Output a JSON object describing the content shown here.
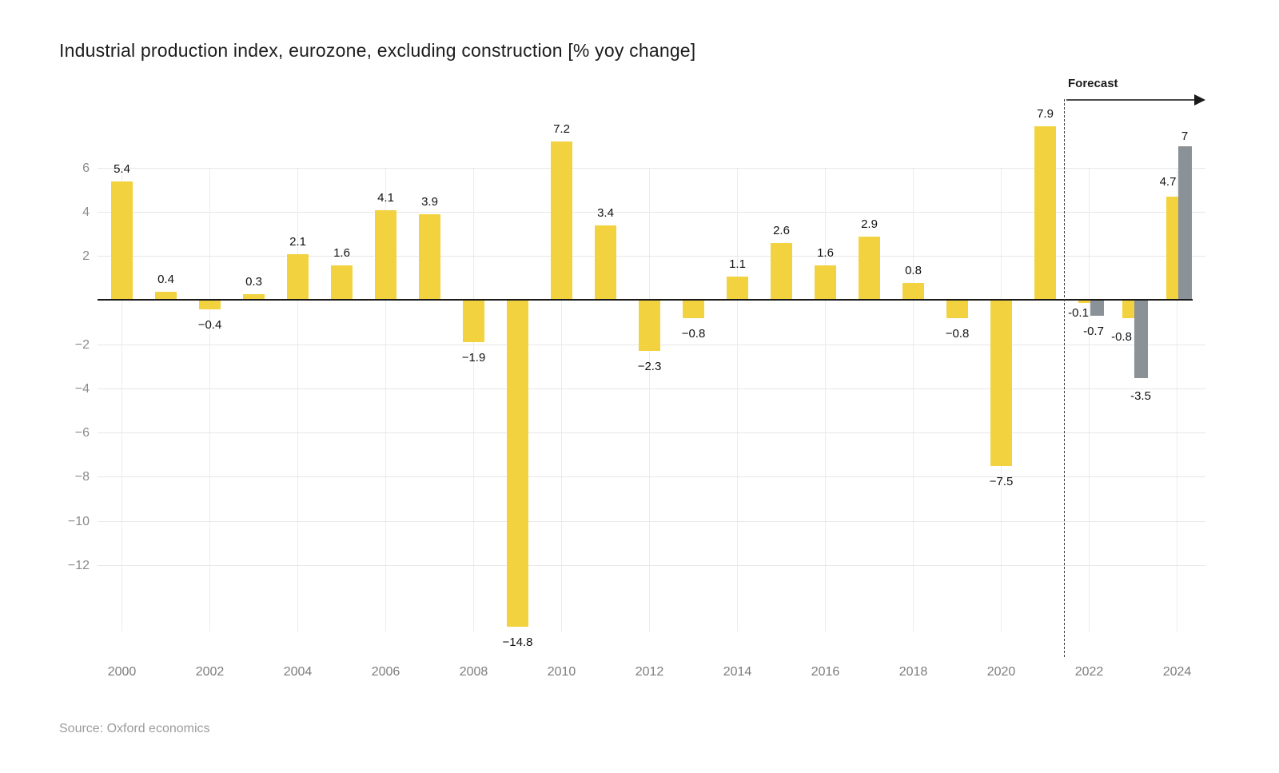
{
  "chart_data": {
    "type": "bar",
    "title": "Industrial production index, eurozone, excluding construction [% yoy change]",
    "source": "Source: Oxford economics",
    "forecast_label": "Forecast",
    "xlabel": "",
    "ylabel": "",
    "ylim": [
      -16,
      8
    ],
    "grid": true,
    "legend_position": "none",
    "colors": {
      "historical_bar": "#F3D240",
      "forecast_bar": "#8A9197",
      "axis_line": "#1a1a1a",
      "gridline": "#e7e7e7"
    },
    "y_ticks": [
      {
        "value": 6,
        "label": "6"
      },
      {
        "value": 4,
        "label": "4"
      },
      {
        "value": 2,
        "label": "2"
      },
      {
        "value": -2,
        "label": "−2"
      },
      {
        "value": -4,
        "label": "−4"
      },
      {
        "value": -6,
        "label": "−6"
      },
      {
        "value": -8,
        "label": "−8"
      },
      {
        "value": -10,
        "label": "−10"
      },
      {
        "value": -12,
        "label": "−12"
      }
    ],
    "x_ticks": [
      {
        "year": 2000,
        "label": "2000"
      },
      {
        "year": 2002,
        "label": "2002"
      },
      {
        "year": 2004,
        "label": "2004"
      },
      {
        "year": 2006,
        "label": "2006"
      },
      {
        "year": 2008,
        "label": "2008"
      },
      {
        "year": 2010,
        "label": "2010"
      },
      {
        "year": 2012,
        "label": "2012"
      },
      {
        "year": 2014,
        "label": "2014"
      },
      {
        "year": 2016,
        "label": "2016"
      },
      {
        "year": 2018,
        "label": "2018"
      },
      {
        "year": 2020,
        "label": "2020"
      },
      {
        "year": 2022,
        "label": "2022"
      },
      {
        "year": 2024,
        "label": "2024"
      }
    ],
    "bars": [
      {
        "year": 2000,
        "value": 5.4,
        "label": "5.4",
        "color": "yellow"
      },
      {
        "year": 2001,
        "value": 0.4,
        "label": "0.4",
        "color": "yellow"
      },
      {
        "year": 2002,
        "value": -0.4,
        "label": "−0.4",
        "color": "yellow"
      },
      {
        "year": 2003,
        "value": 0.3,
        "label": "0.3",
        "color": "yellow"
      },
      {
        "year": 2004,
        "value": 2.1,
        "label": "2.1",
        "color": "yellow"
      },
      {
        "year": 2005,
        "value": 1.6,
        "label": "1.6",
        "color": "yellow"
      },
      {
        "year": 2006,
        "value": 4.1,
        "label": "4.1",
        "color": "yellow"
      },
      {
        "year": 2007,
        "value": 3.9,
        "label": "3.9",
        "color": "yellow"
      },
      {
        "year": 2008,
        "value": -1.9,
        "label": "−1.9",
        "color": "yellow"
      },
      {
        "year": 2009,
        "value": -14.8,
        "label": "−14.8",
        "color": "yellow"
      },
      {
        "year": 2010,
        "value": 7.2,
        "label": "7.2",
        "color": "yellow"
      },
      {
        "year": 2011,
        "value": 3.4,
        "label": "3.4",
        "color": "yellow"
      },
      {
        "year": 2012,
        "value": -2.3,
        "label": "−2.3",
        "color": "yellow"
      },
      {
        "year": 2013,
        "value": -0.8,
        "label": "−0.8",
        "color": "yellow"
      },
      {
        "year": 2014,
        "value": 1.1,
        "label": "1.1",
        "color": "yellow"
      },
      {
        "year": 2015,
        "value": 2.6,
        "label": "2.6",
        "color": "yellow"
      },
      {
        "year": 2016,
        "value": 1.6,
        "label": "1.6",
        "color": "yellow"
      },
      {
        "year": 2017,
        "value": 2.9,
        "label": "2.9",
        "color": "yellow"
      },
      {
        "year": 2018,
        "value": 0.8,
        "label": "0.8",
        "color": "yellow"
      },
      {
        "year": 2019,
        "value": -0.8,
        "label": "−0.8",
        "color": "yellow"
      },
      {
        "year": 2020,
        "value": -7.5,
        "label": "−7.5",
        "color": "yellow"
      },
      {
        "year": 2021,
        "value": 7.9,
        "label": "7.9",
        "color": "yellow"
      },
      {
        "year": 2022,
        "value": -0.1,
        "label": "-0.1",
        "color": "yellow",
        "pair": "left"
      },
      {
        "year": 2022,
        "value": -0.7,
        "label": "-0.7",
        "color": "gray",
        "pair": "right"
      },
      {
        "year": 2023,
        "value": -0.8,
        "label": "-0.8",
        "color": "yellow",
        "pair": "left"
      },
      {
        "year": 2023,
        "value": -3.5,
        "label": "-3.5",
        "color": "gray",
        "pair": "right"
      },
      {
        "year": 2024,
        "value": 4.7,
        "label": "4.7",
        "color": "yellow",
        "pair": "left"
      },
      {
        "year": 2024,
        "value": 7,
        "label": "7",
        "color": "gray",
        "pair": "right"
      }
    ]
  }
}
